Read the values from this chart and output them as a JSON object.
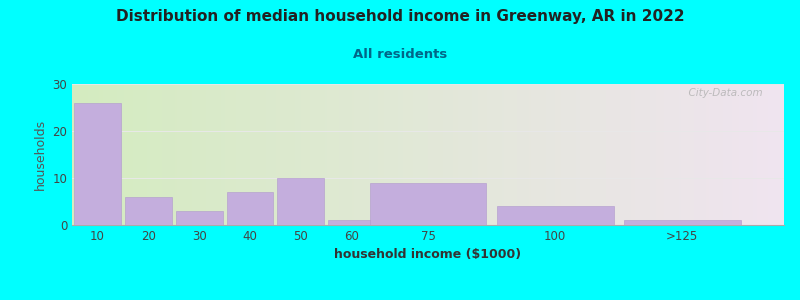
{
  "title": "Distribution of median household income in Greenway, AR in 2022",
  "subtitle": "All residents",
  "xlabel": "household income ($1000)",
  "ylabel": "households",
  "background_color": "#00FFFF",
  "bar_color": "#C4AEDD",
  "bar_edge_color": "#B099CC",
  "categories": [
    "10",
    "20",
    "30",
    "40",
    "50",
    "60",
    "75",
    "100",
    ">125"
  ],
  "values": [
    26,
    6,
    3,
    7,
    10,
    1,
    9,
    4,
    1
  ],
  "bar_widths": [
    10,
    10,
    10,
    10,
    10,
    15,
    25,
    25,
    999
  ],
  "ylim": [
    0,
    30
  ],
  "yticks": [
    0,
    10,
    20,
    30
  ],
  "watermark": "  City-Data.com",
  "plot_bg_gradient_left": "#d4ecc0",
  "plot_bg_gradient_right": "#f0e4f0",
  "grid_color": "#e8e8e8",
  "title_fontsize": 11,
  "subtitle_fontsize": 9.5,
  "axis_label_fontsize": 9,
  "tick_fontsize": 8.5
}
